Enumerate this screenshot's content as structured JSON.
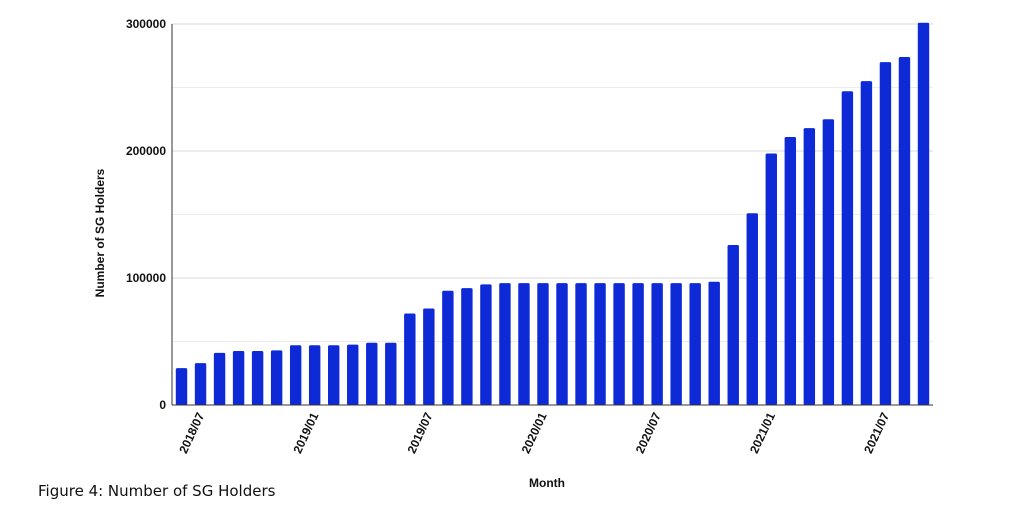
{
  "chart_data": {
    "type": "bar",
    "caption": "Figure 4: Number of SG Holders",
    "x_label": "Month",
    "y_label": "Number of SG Holders",
    "categories": [
      null,
      "2018/07",
      null,
      null,
      null,
      null,
      null,
      "2019/01",
      null,
      null,
      null,
      null,
      null,
      "2019/07",
      null,
      null,
      null,
      null,
      null,
      "2020/01",
      null,
      null,
      null,
      null,
      null,
      "2020/07",
      null,
      null,
      null,
      null,
      null,
      "2021/01",
      null,
      null,
      null,
      null,
      null,
      "2021/07",
      null,
      null
    ],
    "values": [
      29000,
      33000,
      41000,
      42500,
      42500,
      43000,
      47000,
      47000,
      47000,
      47500,
      49000,
      49000,
      72000,
      76000,
      90000,
      92000,
      95000,
      96000,
      96000,
      96000,
      96000,
      96000,
      96000,
      96000,
      96000,
      96000,
      96000,
      96000,
      97000,
      126000,
      151000,
      198000,
      211000,
      218000,
      225000,
      247000,
      255000,
      270000,
      274000,
      301000
    ],
    "color": "#0d2ad6",
    "ylim": [
      0,
      300000
    ],
    "yticks": [
      0,
      100000,
      200000,
      300000
    ],
    "minor_yticks": [
      50000,
      150000,
      250000
    ],
    "grid": true
  }
}
